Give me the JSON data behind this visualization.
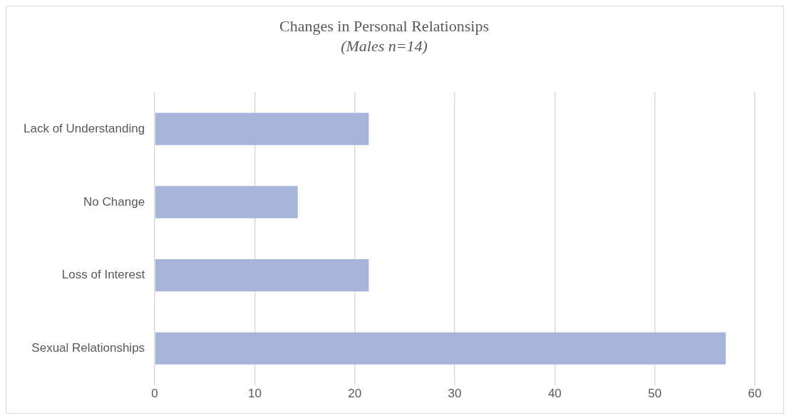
{
  "chart_data": {
    "type": "bar",
    "orientation": "horizontal",
    "title": "Changes in Personal Relationsips",
    "subtitle": "(Males n=14)",
    "categories": [
      "Lack of Understanding",
      "No Change",
      "Loss of Interest",
      "Sexual Relationships"
    ],
    "values": [
      21.4,
      14.3,
      21.4,
      57.1
    ],
    "color": "#a7b4da",
    "xlim": [
      0,
      60
    ],
    "xticks": [
      0,
      10,
      20,
      30,
      40,
      50,
      60
    ],
    "grid": "x",
    "legend": false
  }
}
